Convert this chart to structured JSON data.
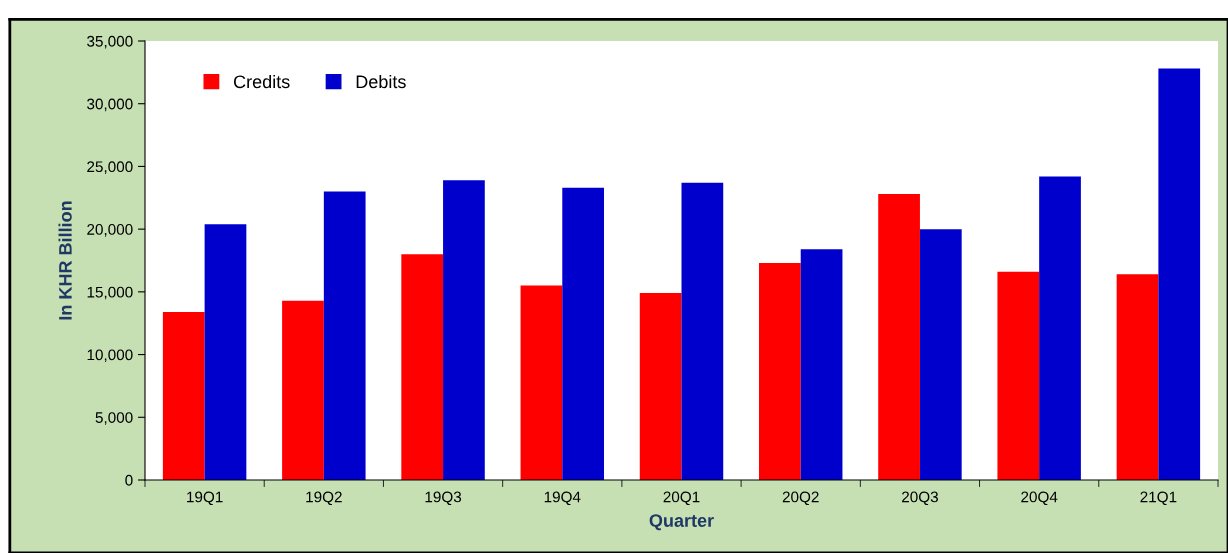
{
  "chart_data": {
    "type": "bar",
    "xlabel": "Quarter",
    "ylabel": "In KHR Billion",
    "categories": [
      "19Q1",
      "19Q2",
      "19Q3",
      "19Q4",
      "20Q1",
      "20Q2",
      "20Q3",
      "20Q4",
      "21Q1"
    ],
    "series": [
      {
        "name": "Credits",
        "color": "#ff0000",
        "values": [
          13400,
          14300,
          18000,
          15500,
          14900,
          17300,
          22800,
          16600,
          16400
        ]
      },
      {
        "name": "Debits",
        "color": "#0000cc",
        "values": [
          20400,
          23000,
          23900,
          23300,
          23700,
          18400,
          20000,
          24200,
          32800
        ]
      }
    ],
    "ylim": [
      0,
      35000
    ],
    "yticks": [
      {
        "value": 0,
        "label": "0"
      },
      {
        "value": 5000,
        "label": "5,000"
      },
      {
        "value": 10000,
        "label": "10,000"
      },
      {
        "value": 15000,
        "label": "15,000"
      },
      {
        "value": 20000,
        "label": "20,000"
      },
      {
        "value": 25000,
        "label": "25,000"
      },
      {
        "value": 30000,
        "label": "30,000"
      },
      {
        "value": 35000,
        "label": "35,000"
      }
    ],
    "legend": "top left",
    "grid": false
  }
}
